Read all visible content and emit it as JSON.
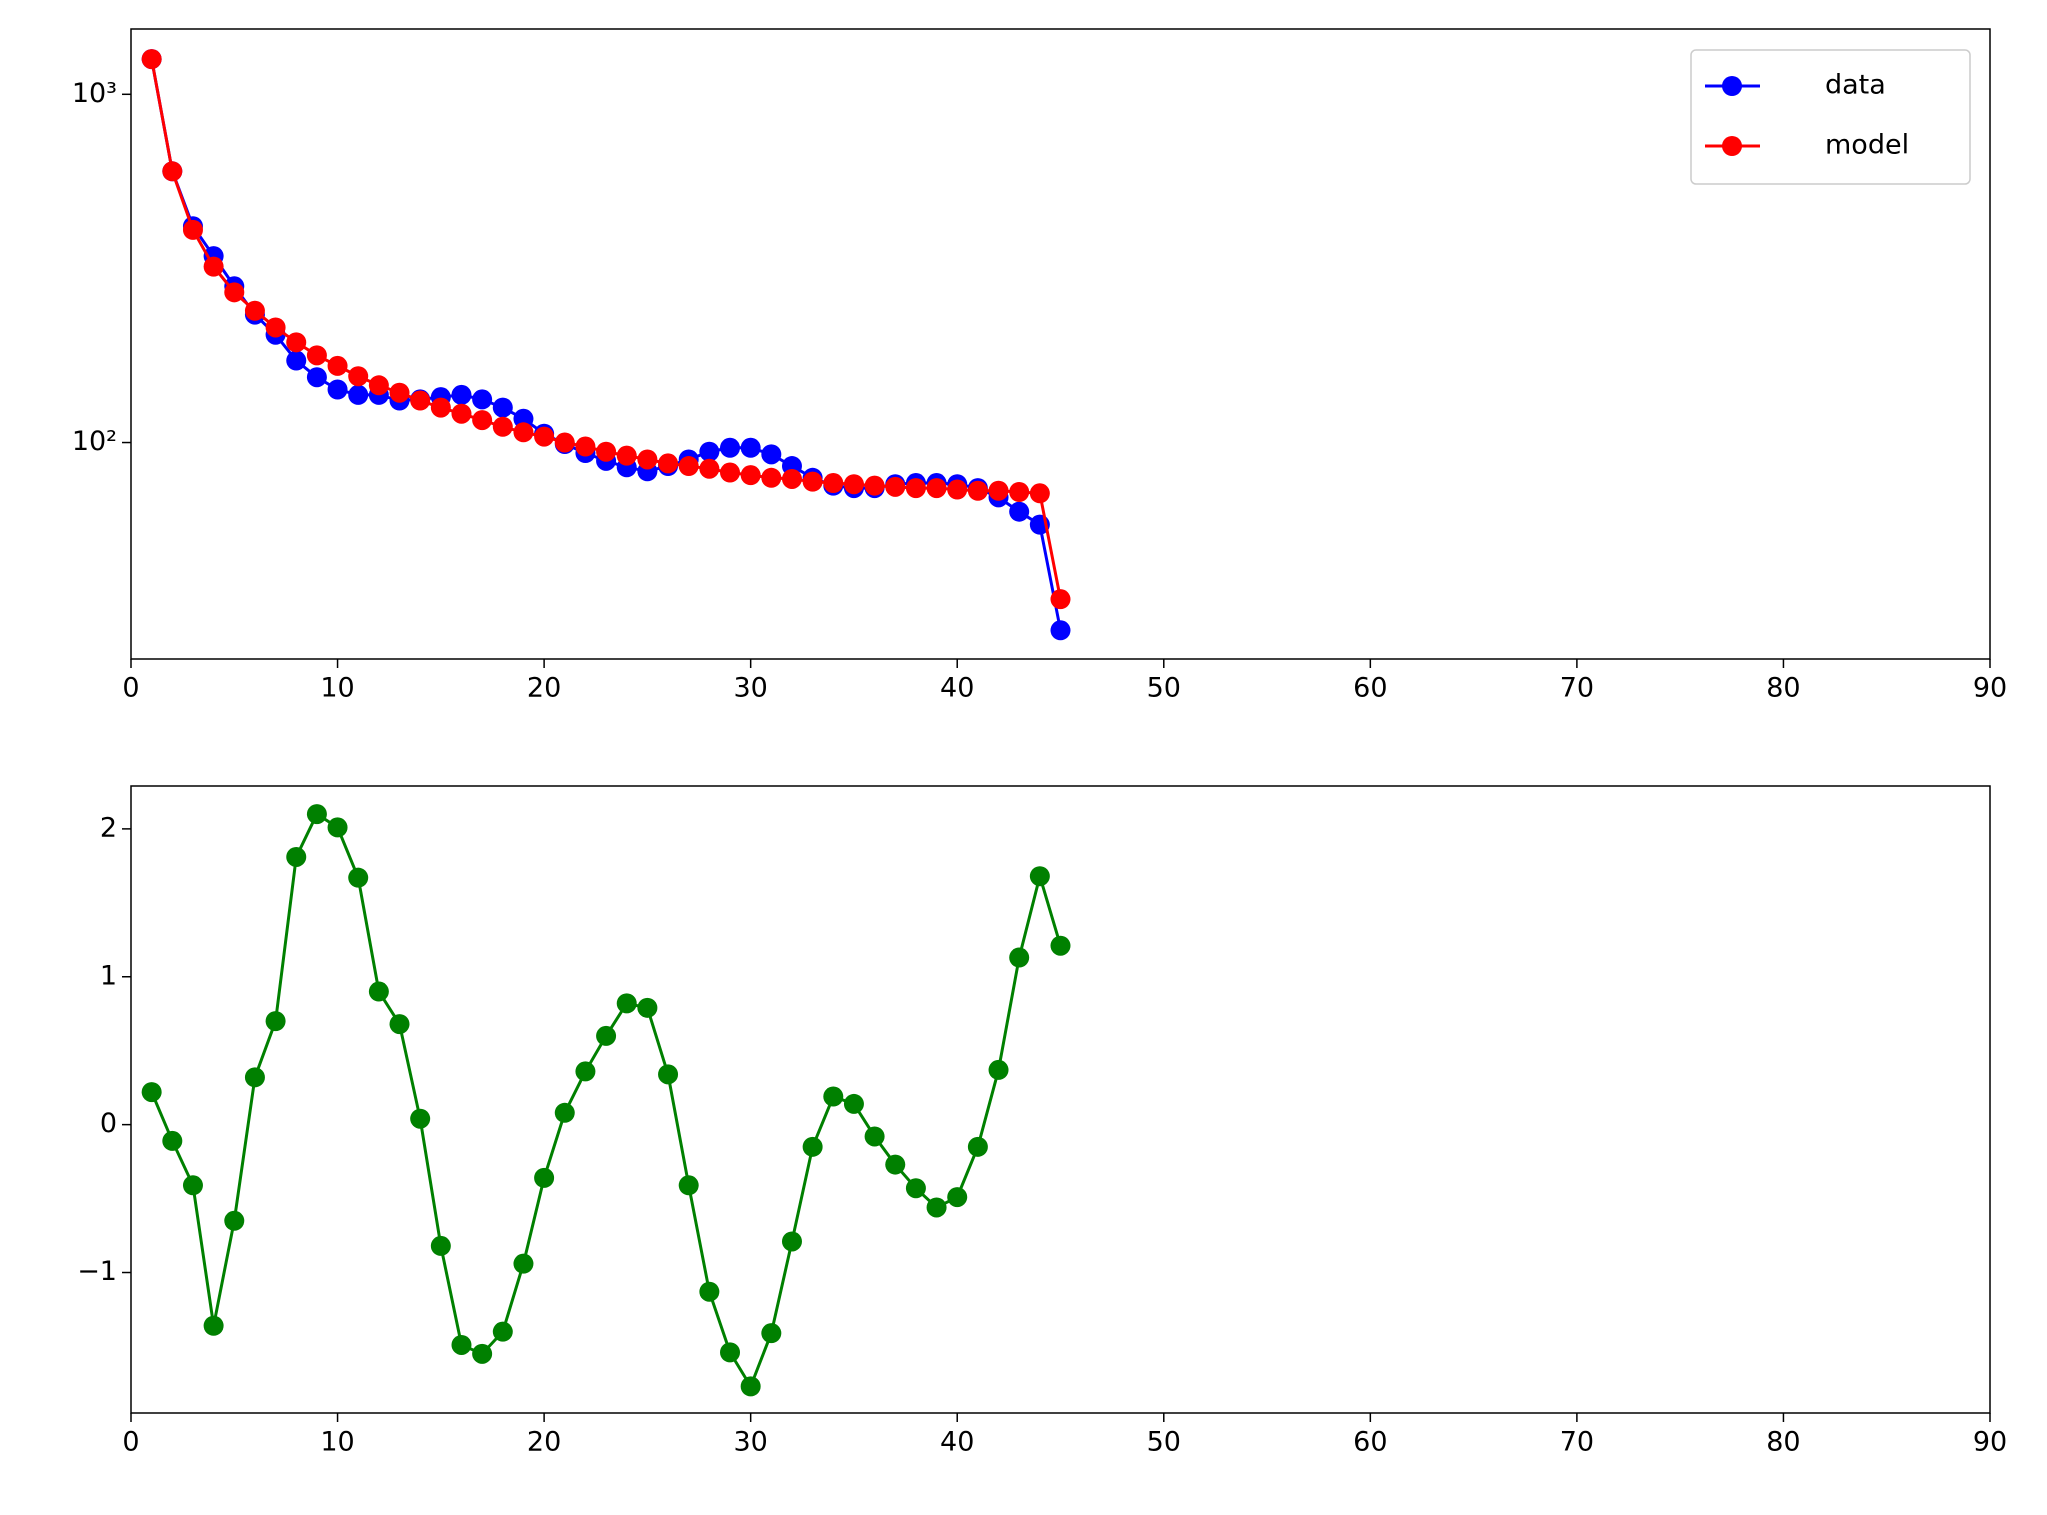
{
  "chart_data": [
    {
      "type": "line",
      "yscale": "log",
      "x": [
        1,
        2,
        3,
        4,
        5,
        6,
        7,
        8,
        9,
        10,
        11,
        12,
        13,
        14,
        15,
        16,
        17,
        18,
        19,
        20,
        21,
        22,
        23,
        24,
        25,
        26,
        27,
        28,
        29,
        30,
        31,
        32,
        33,
        34,
        35,
        36,
        37,
        38,
        39,
        40,
        41,
        42,
        43,
        44,
        45
      ],
      "series": [
        {
          "name": "data",
          "color": "#0000ff",
          "values": [
            1262,
            601,
            418,
            343,
            281,
            233,
            204,
            172,
            154,
            142,
            137,
            137,
            132,
            133,
            135,
            137,
            133,
            126,
            117,
            106,
            99,
            93.3,
            88.6,
            84.9,
            82.7,
            85.6,
            89.4,
            94.1,
            96.6,
            96.6,
            92.5,
            85.6,
            79.2,
            75.2,
            74,
            74,
            75.9,
            76.5,
            76.5,
            75.9,
            74,
            69.6,
            63.3,
            58.1,
            28.9
          ]
        },
        {
          "name": "model",
          "color": "#ff0000",
          "values": [
            1262,
            601,
            408,
            320,
            270,
            239,
            214,
            194,
            178,
            166,
            155,
            146,
            139,
            132,
            126,
            121,
            116,
            111,
            107,
            104,
            100,
            97.4,
            94.1,
            91.7,
            89.4,
            87.1,
            85.6,
            84.1,
            82.0,
            80.6,
            79.2,
            78.6,
            77.2,
            76.5,
            75.9,
            75.2,
            74.6,
            74.0,
            74.0,
            73.3,
            72.7,
            72.7,
            72.1,
            71.5,
            35.5
          ]
        }
      ],
      "xlim": [
        0,
        90
      ],
      "xticks": [
        0,
        10,
        20,
        30,
        40,
        50,
        60,
        70,
        80,
        90
      ],
      "ylim": [
        23.9,
        1540
      ],
      "yticks": [
        {
          "value": 100,
          "label": "10²"
        },
        {
          "value": 1000,
          "label": "10³"
        }
      ],
      "legend": "upper right"
    },
    {
      "type": "line",
      "x": [
        1,
        2,
        3,
        4,
        5,
        6,
        7,
        8,
        9,
        10,
        11,
        12,
        13,
        14,
        15,
        16,
        17,
        18,
        19,
        20,
        21,
        22,
        23,
        24,
        25,
        26,
        27,
        28,
        29,
        30,
        31,
        32,
        33,
        34,
        35,
        36,
        37,
        38,
        39,
        40,
        41,
        42,
        43,
        44,
        45
      ],
      "color": "#008000",
      "values": [
        0.22,
        -0.11,
        -0.41,
        -1.36,
        -0.65,
        0.32,
        0.7,
        1.81,
        2.1,
        2.01,
        1.67,
        0.9,
        0.68,
        0.04,
        -0.82,
        -1.49,
        -1.55,
        -1.4,
        -0.94,
        -0.36,
        0.08,
        0.36,
        0.6,
        0.82,
        0.79,
        0.34,
        -0.41,
        -1.13,
        -1.54,
        -1.77,
        -1.41,
        -0.79,
        -0.15,
        0.19,
        0.14,
        -0.08,
        -0.27,
        -0.43,
        -0.56,
        -0.49,
        -0.15,
        0.37,
        1.13,
        1.68,
        1.21
      ],
      "xlim": [
        0,
        90
      ],
      "xticks": [
        0,
        10,
        20,
        30,
        40,
        50,
        60,
        70,
        80,
        90
      ],
      "ylim": [
        -1.95,
        2.29
      ],
      "yticks": [
        {
          "value": -1,
          "label": "−1"
        },
        0,
        1,
        2
      ]
    }
  ]
}
